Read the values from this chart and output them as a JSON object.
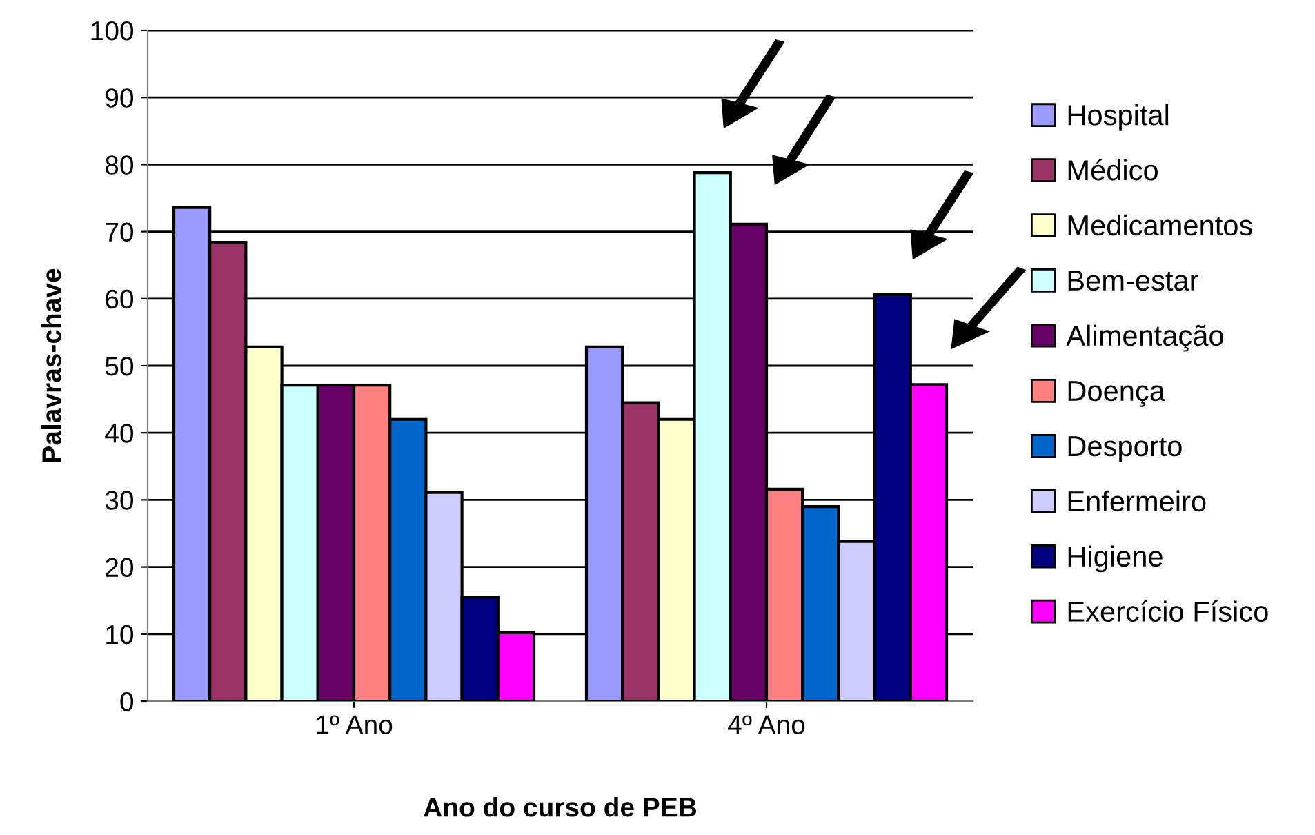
{
  "chart_data": {
    "type": "bar",
    "xlabel": "Ano do curso de PEB",
    "ylabel": "Palavras-chave",
    "categories": [
      "1º Ano",
      "4º Ano"
    ],
    "ylim": [
      0,
      100
    ],
    "yticks": [
      0,
      10,
      20,
      30,
      40,
      50,
      60,
      70,
      80,
      90,
      100
    ],
    "grid": "y",
    "legend": "right",
    "series": [
      {
        "name": "Hospital",
        "color": "#9999ff",
        "values": [
          73.6,
          52.8
        ]
      },
      {
        "name": "Médico",
        "color": "#993366",
        "values": [
          68.4,
          44.5
        ]
      },
      {
        "name": "Medicamentos",
        "color": "#ffffcc",
        "values": [
          52.8,
          42.0
        ]
      },
      {
        "name": "Bem-estar",
        "color": "#ccffff",
        "values": [
          47.1,
          78.8
        ]
      },
      {
        "name": "Alimentação",
        "color": "#660066",
        "values": [
          47.1,
          71.1
        ]
      },
      {
        "name": "Doença",
        "color": "#ff8080",
        "values": [
          47.1,
          31.6
        ]
      },
      {
        "name": "Desporto",
        "color": "#0066cc",
        "values": [
          42.0,
          29.0
        ]
      },
      {
        "name": "Enfermeiro",
        "color": "#ccccff",
        "values": [
          31.1,
          23.8
        ]
      },
      {
        "name": "Higiene",
        "color": "#000080",
        "values": [
          15.5,
          60.6
        ]
      },
      {
        "name": "Exercício Físico",
        "color": "#ff00ff",
        "values": [
          10.2,
          47.2
        ]
      }
    ]
  }
}
